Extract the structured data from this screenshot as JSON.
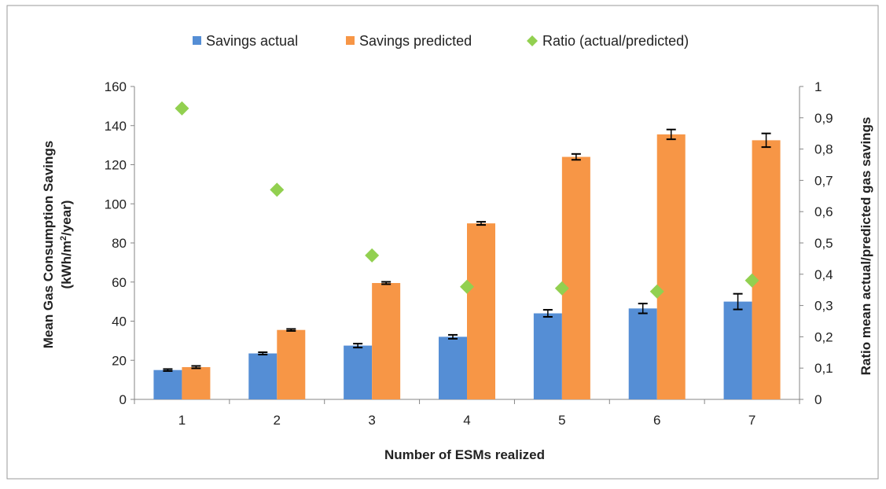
{
  "chart_data": {
    "type": "bar",
    "categories": [
      "1",
      "2",
      "3",
      "4",
      "5",
      "6",
      "7"
    ],
    "series": [
      {
        "name": "Savings actual",
        "axis": "left",
        "color": "#558ED5",
        "values": [
          15,
          23.5,
          27.5,
          32,
          44,
          46.5,
          50
        ],
        "error": [
          0.5,
          0.6,
          1.0,
          1.0,
          1.8,
          2.5,
          4.0
        ]
      },
      {
        "name": "Savings predicted",
        "axis": "left",
        "color": "#F79646",
        "values": [
          16.5,
          35.5,
          59.5,
          90,
          124,
          135.5,
          132.5
        ],
        "error": [
          0.6,
          0.5,
          0.6,
          0.8,
          1.5,
          2.5,
          3.5
        ]
      },
      {
        "name": "Ratio (actual/predicted)",
        "axis": "right",
        "type": "scatter",
        "color": "#92D050",
        "values": [
          0.93,
          0.67,
          0.46,
          0.36,
          0.355,
          0.345,
          0.38
        ]
      }
    ],
    "xlabel": "Number of ESMs realized",
    "ylabel_line1": "Mean Gas Consumption Savings",
    "ylabel_line2_prefix": "(kWh/m",
    "ylabel_line2_sup": "2",
    "ylabel_line2_suffix": "/year)",
    "y2label": "Ratio mean actual/predicted gas savings",
    "ylim": [
      0,
      160
    ],
    "yticks": [
      "0",
      "20",
      "40",
      "60",
      "80",
      "100",
      "120",
      "140",
      "160"
    ],
    "y2lim": [
      0,
      1
    ],
    "y2ticks": [
      "0",
      "0,1",
      "0,2",
      "0,3",
      "0,4",
      "0,5",
      "0,6",
      "0,7",
      "0,8",
      "0,9",
      "1"
    ],
    "legend_position": "top",
    "grid": false
  }
}
